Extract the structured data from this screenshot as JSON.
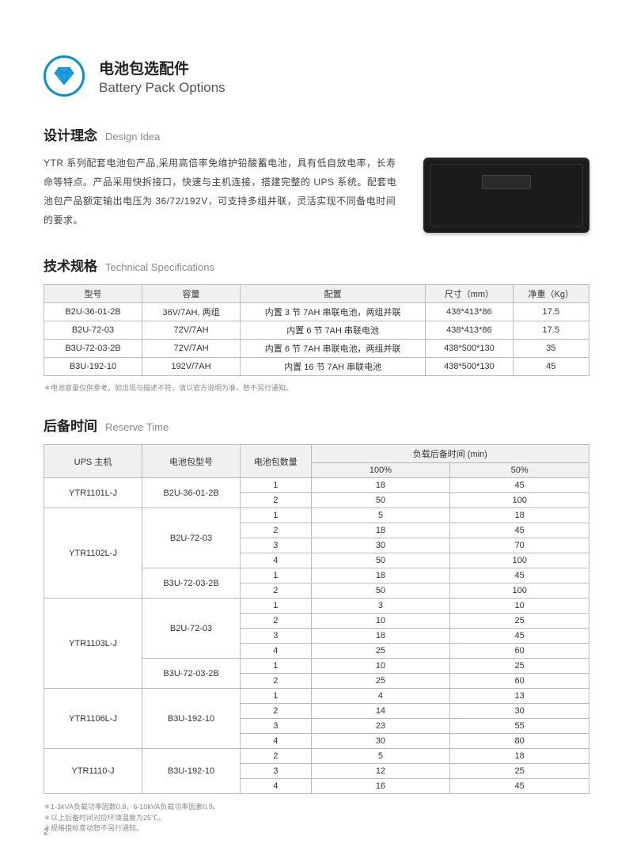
{
  "header": {
    "icon_color": "#0090e0",
    "title_cn": "电池包选配件",
    "title_en": "Battery Pack Options"
  },
  "design": {
    "head_cn": "设计理念",
    "head_en": "Design Idea",
    "body": "YTR 系列配套电池包产品,采用高倍率免维护铅酸蓄电池，具有低自放电率，长寿命等特点。产品采用快拆接口，快速与主机连接，搭建完整的 UPS 系统。配套电池包产品额定输出电压为 36/72/192V，可支持多组并联，灵活实现不同备电时间的要求。"
  },
  "spec": {
    "head_cn": "技术规格",
    "head_en": "Technical Specifications",
    "columns": [
      "型号",
      "容量",
      "配置",
      "尺寸（mm）",
      "净重（Kg）"
    ],
    "rows": [
      [
        "B2U-36-01-2B",
        "36V/7AH, 两组",
        "内置 3 节 7AH 串联电池，两组并联",
        "438*413*86",
        "17.5"
      ],
      [
        "B2U-72-03",
        "72V/7AH",
        "内置 6 节 7AH 串联电池",
        "438*413*86",
        "17.5"
      ],
      [
        "B3U-72-03-2B",
        "72V/7AH",
        "内置 6 节 7AH 串联电池，两组并联",
        "438*500*130",
        "35"
      ],
      [
        "B3U-192-10",
        "192V/7AH",
        "内置 16 节 7AH 串联电池",
        "438*500*130",
        "45"
      ]
    ],
    "footnote": "＊电池容量仅供参考，如出现与描述不符，请以官方说明为准，恕不另行通知。"
  },
  "reserve": {
    "head_cn": "后备时间",
    "head_en": "Reserve Time",
    "col_ups": "UPS 主机",
    "col_pack": "电池包型号",
    "col_qty": "电池包数量",
    "col_load_group": "负载后备时间 (min)",
    "col_100": "100%",
    "col_50": "50%",
    "groups": [
      {
        "ups": "YTR1101L-J",
        "packs": [
          {
            "pack": "B2U-36-01-2B",
            "rows": [
              [
                "1",
                "18",
                "45"
              ],
              [
                "2",
                "50",
                "100"
              ]
            ]
          }
        ]
      },
      {
        "ups": "YTR1102L-J",
        "packs": [
          {
            "pack": "B2U-72-03",
            "rows": [
              [
                "1",
                "5",
                "18"
              ],
              [
                "2",
                "18",
                "45"
              ],
              [
                "3",
                "30",
                "70"
              ],
              [
                "4",
                "50",
                "100"
              ]
            ]
          },
          {
            "pack": "B3U-72-03-2B",
            "rows": [
              [
                "1",
                "18",
                "45"
              ],
              [
                "2",
                "50",
                "100"
              ]
            ]
          }
        ]
      },
      {
        "ups": "YTR1103L-J",
        "packs": [
          {
            "pack": "B2U-72-03",
            "rows": [
              [
                "1",
                "3",
                "10"
              ],
              [
                "2",
                "10",
                "25"
              ],
              [
                "3",
                "18",
                "45"
              ],
              [
                "4",
                "25",
                "60"
              ]
            ]
          },
          {
            "pack": "B3U-72-03-2B",
            "rows": [
              [
                "1",
                "10",
                "25"
              ],
              [
                "2",
                "25",
                "60"
              ]
            ]
          }
        ]
      },
      {
        "ups": "YTR1106L-J",
        "packs": [
          {
            "pack": "B3U-192-10",
            "rows": [
              [
                "1",
                "4",
                "13"
              ],
              [
                "2",
                "14",
                "30"
              ],
              [
                "3",
                "23",
                "55"
              ],
              [
                "4",
                "30",
                "80"
              ]
            ]
          }
        ]
      },
      {
        "ups": "YTR1110-J",
        "packs": [
          {
            "pack": "B3U-192-10",
            "rows": [
              [
                "2",
                "5",
                "18"
              ],
              [
                "3",
                "12",
                "25"
              ],
              [
                "4",
                "16",
                "45"
              ]
            ]
          }
        ]
      }
    ],
    "footnotes": [
      "＊1-3kVA负载功率因数0.8，6-10kVA负载功率因素0.9。",
      "＊以上后备时间对应环境温度为25℃。",
      "＊规格指标变动恕不另行通知。"
    ]
  },
  "page_number": "2"
}
